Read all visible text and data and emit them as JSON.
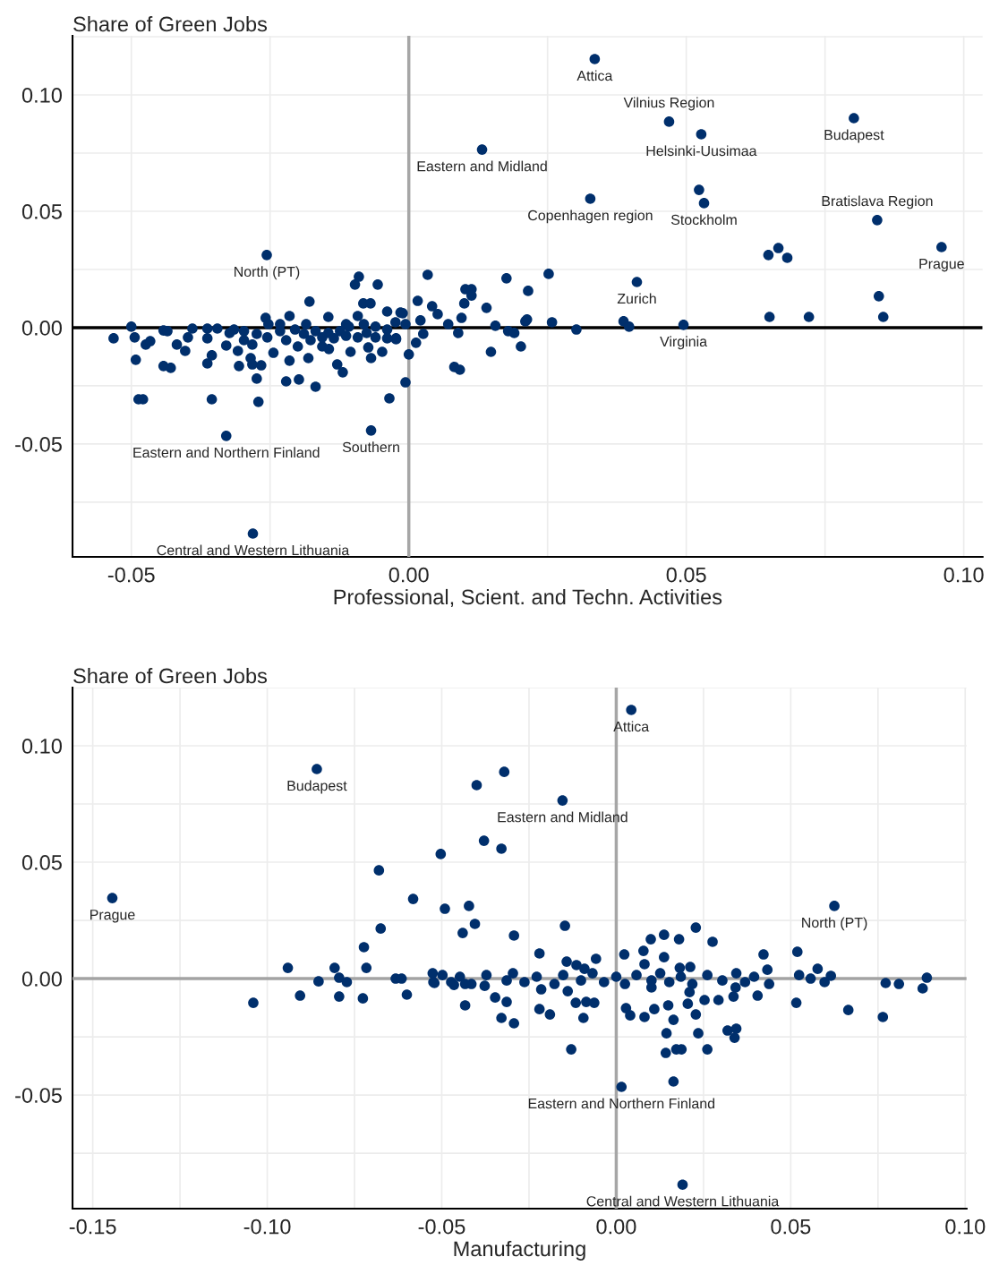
{
  "chart_data": [
    {
      "type": "scatter",
      "xlabel": "Professional, Scient. and Techn. Activities",
      "ylabel": "Share of Green Jobs",
      "xlim": [
        -0.0606,
        0.1034
      ],
      "ylim": [
        -0.0985,
        0.1254
      ],
      "xticks": [
        {
          "value": -0.05,
          "label": "-0.05"
        },
        {
          "value": -0.025,
          "label": null
        },
        {
          "value": 0,
          "label": "0.00"
        },
        {
          "value": 0.025,
          "label": null
        },
        {
          "value": 0.05,
          "label": "0.05"
        },
        {
          "value": 0.075,
          "label": null
        },
        {
          "value": 0.1,
          "label": "0.10"
        }
      ],
      "yticks": [
        {
          "value": -0.075,
          "label": null
        },
        {
          "value": -0.05,
          "label": "-0.05"
        },
        {
          "value": -0.025,
          "label": null
        },
        {
          "value": 0,
          "label": "0.00"
        },
        {
          "value": 0.025,
          "label": null
        },
        {
          "value": 0.05,
          "label": "0.05"
        },
        {
          "value": 0.075,
          "label": null
        },
        {
          "value": 0.1,
          "label": "0.10"
        },
        {
          "value": 0.125,
          "label": null
        }
      ],
      "grid": true,
      "marker": "circle",
      "ref_lines": [
        {
          "axis": "x",
          "value": 0,
          "color": "#a6a6a6"
        },
        {
          "axis": "y",
          "value": 0,
          "color": "#000000"
        }
      ],
      "annotations": [
        {
          "text": "Attica",
          "x": 0.0335,
          "y": 0.1154
        },
        {
          "text": "Vilnius Region",
          "x": 0.0469,
          "y": 0.0885
        },
        {
          "text": "Helsinki-Uusimaa",
          "x": 0.0527,
          "y": 0.0831
        },
        {
          "text": "Budapest",
          "x": 0.0802,
          "y": 0.09
        },
        {
          "text": "Eastern and Midland",
          "x": 0.0132,
          "y": 0.0765
        },
        {
          "text": "Copenhagen region",
          "x": 0.0327,
          "y": 0.0554
        },
        {
          "text": "Stockholm",
          "x": 0.0532,
          "y": 0.0535
        },
        {
          "text": "Bratislava Region",
          "x": 0.0844,
          "y": 0.0462
        },
        {
          "text": "Prague",
          "x": 0.096,
          "y": 0.0346
        },
        {
          "text": "Zurich",
          "x": 0.0411,
          "y": 0.0196
        },
        {
          "text": "Virginia",
          "x": 0.0495,
          "y": 0.0012
        },
        {
          "text": "North (PT)",
          "x": -0.0256,
          "y": 0.0312
        },
        {
          "text": "Eastern and Northern Finland",
          "x": -0.0329,
          "y": -0.0465
        },
        {
          "text": "Southern",
          "x": -0.0068,
          "y": -0.0442
        },
        {
          "text": "Central and Western Lithuania",
          "x": -0.0281,
          "y": -0.0885
        }
      ],
      "series": [
        {
          "color": "#002f6c",
          "x": [
            0.0335,
            0.0469,
            0.0527,
            0.0802,
            0.0132,
            0.0327,
            0.0523,
            0.0532,
            0.0844,
            0.096,
            0.0666,
            0.0648,
            0.0682,
            0.0847,
            0.0855,
            0.065,
            0.0721,
            0.0411,
            0.0495,
            -0.0256,
            -0.0329,
            -0.0068,
            -0.0281,
            0.0034,
            0.0176,
            0.0252,
            0.0215,
            0.0102,
            0.0113,
            0.0113,
            0.0016,
            0.01,
            0.0042,
            0.014,
            0.0052,
            0.0095,
            -0.0011,
            0.0021,
            0.0071,
            0.0156,
            0.021,
            0.0213,
            0.0258,
            0.0302,
            0.0387,
            0.0397,
            0.0179,
            0.019,
            0.0202,
            0.0148,
            0.0082,
            0.0092,
            0.0026,
            0.0089,
            0.0013,
            0.0,
            -0.0023,
            -0.0006,
            -0.0035,
            -0.0532,
            -0.05,
            -0.0494,
            -0.0492,
            -0.0487,
            -0.0479,
            -0.0474,
            -0.0466,
            -0.0442,
            -0.0442,
            -0.0429,
            -0.0435,
            -0.0418,
            -0.0403,
            -0.0398,
            -0.039,
            -0.0363,
            -0.0363,
            -0.0363,
            -0.0355,
            -0.0355,
            -0.0345,
            -0.0329,
            -0.0315,
            -0.0308,
            -0.0306,
            -0.0297,
            -0.0285,
            -0.0282,
            -0.0282,
            -0.0274,
            -0.0271,
            -0.0266,
            -0.0258,
            -0.0255,
            -0.0244,
            -0.0232,
            -0.0221,
            -0.0215,
            -0.0221,
            -0.0215,
            -0.02,
            -0.0198,
            -0.0181,
            -0.0179,
            -0.0185,
            -0.0168,
            -0.0156,
            -0.0145,
            -0.0144,
            -0.0129,
            -0.0119,
            -0.0113,
            -0.0105,
            -0.0097,
            -0.009,
            -0.0092,
            -0.0082,
            -0.0069,
            -0.0056,
            -0.0076,
            -0.0073,
            -0.0068,
            -0.0048,
            -0.0039,
            -0.0023,
            -0.0015,
            -0.0323,
            -0.0297,
            -0.0274,
            -0.0253,
            -0.0232,
            -0.0205,
            -0.0189,
            -0.0168,
            -0.0145,
            -0.0124,
            -0.0108,
            -0.0081,
            -0.006,
            -0.0039,
            -0.0024,
            -0.0006,
            -0.0177,
            -0.0156,
            -0.0135,
            -0.0113,
            -0.0092,
            -0.006,
            -0.0039
          ],
          "values": [
            0.1154,
            0.0885,
            0.0831,
            0.09,
            0.0765,
            0.0554,
            0.0592,
            0.0535,
            0.0462,
            0.0346,
            0.0342,
            0.0312,
            0.03,
            0.0135,
            0.0046,
            0.0046,
            0.0046,
            0.0196,
            0.0012,
            0.0312,
            -0.0465,
            -0.0442,
            -0.0885,
            0.0227,
            0.0212,
            0.0231,
            0.0158,
            0.0165,
            0.0165,
            0.0138,
            0.0115,
            0.0104,
            0.0092,
            0.0085,
            0.0058,
            0.0042,
            0.0062,
            0.0031,
            0.0015,
            0.0008,
            0.0027,
            0.0035,
            0.0023,
            -0.0008,
            0.0027,
            0.0004,
            -0.0015,
            -0.0023,
            -0.0081,
            -0.0104,
            -0.0169,
            -0.0181,
            -0.0027,
            -0.0023,
            -0.0065,
            -0.0115,
            -0.0046,
            -0.0235,
            -0.0304,
            -0.0046,
            0.0004,
            -0.0042,
            -0.0138,
            -0.0308,
            -0.0308,
            -0.0073,
            -0.0058,
            -0.0012,
            -0.0165,
            -0.0173,
            -0.0015,
            -0.0073,
            -0.01,
            -0.0042,
            -0.0004,
            -0.0004,
            -0.0046,
            -0.0154,
            -0.0119,
            -0.0308,
            -0.0004,
            -0.0077,
            -0.0008,
            -0.01,
            -0.0165,
            -0.0054,
            -0.0131,
            -0.0158,
            -0.0073,
            -0.0219,
            -0.0319,
            -0.0162,
            0.0042,
            -0.0042,
            -0.0108,
            0.0015,
            -0.0231,
            0.005,
            -0.0054,
            -0.0142,
            -0.0081,
            -0.0223,
            -0.0131,
            0.0112,
            0.0015,
            -0.0254,
            -0.0081,
            0.0046,
            -0.0092,
            -0.0158,
            -0.0192,
            0.0015,
            -0.0104,
            0.0185,
            0.0219,
            0.005,
            0.0104,
            0.0104,
            0.0185,
            -0.0023,
            -0.0085,
            -0.0131,
            -0.0104,
            0.0069,
            -0.005,
            0.0065,
            -0.0023,
            -0.0015,
            -0.0027,
            0.0015,
            -0.0015,
            -0.0008,
            -0.0027,
            -0.0015,
            -0.0023,
            -0.0015,
            0.0004,
            0.0015,
            0.0004,
            -0.0008,
            0.0023,
            0.0015,
            -0.0054,
            -0.0042,
            -0.0046,
            -0.0035,
            -0.0042,
            -0.0042,
            -0.0046
          ]
        }
      ]
    },
    {
      "type": "scatter",
      "xlabel": "Manufacturing",
      "ylabel": "Share of Green Jobs",
      "xlim": [
        -0.1558,
        0.1004
      ],
      "ylim": [
        -0.0988,
        0.125
      ],
      "xticks": [
        {
          "value": -0.15,
          "label": "-0.15"
        },
        {
          "value": -0.125,
          "label": null
        },
        {
          "value": -0.1,
          "label": "-0.10"
        },
        {
          "value": -0.075,
          "label": null
        },
        -0.05,
        {
          "value": -0.025,
          "label": null
        },
        {
          "value": 0,
          "label": "0.00"
        },
        {
          "value": 0.025,
          "label": null
        },
        {
          "value": 0.05,
          "label": "0.05"
        },
        {
          "value": 0.075,
          "label": null
        },
        {
          "value": 0.1,
          "label": "0.10"
        }
      ],
      "yticks": [
        {
          "value": -0.075,
          "label": null
        },
        {
          "value": -0.05,
          "label": "-0.05"
        },
        {
          "value": -0.025,
          "label": null
        },
        {
          "value": 0,
          "label": "0.00"
        },
        {
          "value": 0.025,
          "label": null
        },
        {
          "value": 0.05,
          "label": "0.05"
        },
        {
          "value": 0.075,
          "label": null
        },
        {
          "value": 0.1,
          "label": "0.10"
        },
        {
          "value": 0.125,
          "label": null
        }
      ],
      "grid": true,
      "marker": "circle",
      "ref_lines": [
        {
          "axis": "x",
          "value": 0,
          "color": "#a6a6a6"
        },
        {
          "axis": "y",
          "value": 0,
          "color": "#a3a3a3"
        }
      ],
      "annotations": [
        {
          "text": "Attica",
          "x": 0.0043,
          "y": 0.1154
        },
        {
          "text": "Budapest",
          "x": -0.0858,
          "y": 0.09
        },
        {
          "text": "Eastern and Midland",
          "x": -0.0154,
          "y": 0.0765
        },
        {
          "text": "Prague",
          "x": -0.1444,
          "y": 0.0346
        },
        {
          "text": "North (PT)",
          "x": 0.0625,
          "y": 0.0312
        },
        {
          "text": "Eastern and Northern Finland",
          "x": 0.0015,
          "y": -0.0465
        },
        {
          "text": "Central and Western Lithuania",
          "x": 0.019,
          "y": -0.0885
        }
      ],
      "series": [
        {
          "color": "#002f6c",
          "x": [
            0.0043,
            -0.0858,
            -0.0154,
            -0.1444,
            0.0625,
            0.0015,
            0.019,
            -0.0321,
            -0.04,
            -0.0379,
            -0.0329,
            -0.0503,
            -0.068,
            -0.0582,
            -0.0422,
            -0.0491,
            -0.0405,
            -0.0675,
            -0.0147,
            0.0164,
            -0.0129,
            -0.0723,
            -0.0941,
            -0.0807,
            -0.0716,
            -0.0794,
            -0.0853,
            -0.0772,
            -0.0632,
            -0.0615,
            -0.0526,
            -0.0524,
            -0.104,
            -0.0906,
            -0.0794,
            -0.0726,
            -0.06,
            -0.044,
            -0.0293,
            -0.022,
            -0.0058,
            -0.0142,
            -0.0114,
            -0.0091,
            0.0023,
            0.0078,
            0.0099,
            0.0137,
            0.018,
            0.0228,
            0.0137,
            0.0081,
            0.0182,
            0.0212,
            -0.0498,
            -0.0473,
            -0.0448,
            -0.0415,
            -0.0372,
            -0.0314,
            -0.0296,
            -0.0263,
            -0.0228,
            -0.0177,
            -0.0152,
            -0.0101,
            -0.0068,
            -0.0035,
            0.0,
            0.0025,
            0.0058,
            0.0101,
            0.0126,
            0.0152,
            0.0185,
            0.0218,
            0.0261,
            0.0304,
            0.0344,
            0.0369,
            0.0395,
            0.0438,
            -0.0521,
            -0.0465,
            -0.0433,
            -0.0377,
            -0.0347,
            -0.0314,
            -0.0433,
            -0.0329,
            -0.0293,
            -0.022,
            -0.019,
            -0.0215,
            -0.0139,
            -0.0116,
            -0.0086,
            -0.0063,
            -0.0094,
            0.0028,
            0.004,
            0.0081,
            0.0109,
            0.0149,
            0.0164,
            0.0144,
            0.0142,
            0.0172,
            0.0187,
            0.0235,
            0.0205,
            0.0228,
            0.0101,
            0.021,
            0.0253,
            0.0276,
            0.0422,
            0.0519,
            0.0433,
            0.0577,
            0.0524,
            0.0557,
            0.0597,
            0.0615,
            0.0772,
            0.081,
            0.0878,
            0.089,
            0.0665,
            0.0764,
            0.0516,
            0.0261,
            0.0319,
            0.0344,
            0.0339,
            0.0293,
            0.0405,
            0.0336,
            0.0342
          ],
          "values": [
            0.1154,
            0.09,
            0.0765,
            0.0346,
            0.0312,
            -0.0465,
            -0.0885,
            0.0888,
            0.0831,
            0.0592,
            0.0558,
            0.0535,
            0.0465,
            0.0342,
            0.0312,
            0.03,
            0.0235,
            0.0215,
            0.0227,
            -0.0442,
            -0.0304,
            0.0135,
            0.0046,
            0.0046,
            0.0046,
            0.0004,
            -0.0012,
            -0.0015,
            0.0,
            0.0,
            0.0023,
            -0.0015,
            -0.0104,
            -0.0073,
            -0.0077,
            -0.0085,
            -0.0069,
            0.0196,
            0.0185,
            0.0108,
            0.0085,
            0.0073,
            0.0058,
            0.0042,
            0.0104,
            0.0119,
            0.0169,
            0.0188,
            0.0169,
            0.0219,
            0.0092,
            0.0062,
            0.0046,
            0.005,
            0.0015,
            -0.0015,
            0.0008,
            -0.0023,
            0.0015,
            -0.0008,
            0.0023,
            -0.0015,
            0.0008,
            -0.0023,
            0.0015,
            -0.0008,
            0.0023,
            -0.0015,
            0.0008,
            -0.0023,
            0.0015,
            -0.0008,
            0.0023,
            -0.0015,
            0.0008,
            -0.0023,
            0.0015,
            -0.0008,
            0.0023,
            -0.0015,
            0.0008,
            -0.0023,
            -0.0019,
            -0.0027,
            -0.0023,
            -0.0031,
            -0.0081,
            -0.01,
            -0.0115,
            -0.0169,
            -0.0192,
            -0.0131,
            -0.0154,
            -0.0046,
            -0.0054,
            -0.0104,
            -0.01,
            -0.0104,
            -0.0169,
            -0.0127,
            -0.0158,
            -0.0165,
            -0.0131,
            -0.0115,
            -0.0177,
            -0.0235,
            -0.0319,
            -0.0304,
            -0.0304,
            -0.0235,
            -0.0108,
            -0.0154,
            -0.0038,
            -0.0058,
            -0.0092,
            0.0158,
            0.0104,
            0.0115,
            0.0038,
            0.0042,
            0.0015,
            0.0,
            -0.0015,
            0.0012,
            -0.0019,
            -0.0023,
            -0.0042,
            0.0004,
            -0.0135,
            -0.0165,
            -0.0104,
            -0.0304,
            -0.0223,
            -0.0215,
            -0.0254,
            -0.0092,
            -0.0073,
            -0.0077,
            -0.0038
          ]
        }
      ]
    }
  ]
}
